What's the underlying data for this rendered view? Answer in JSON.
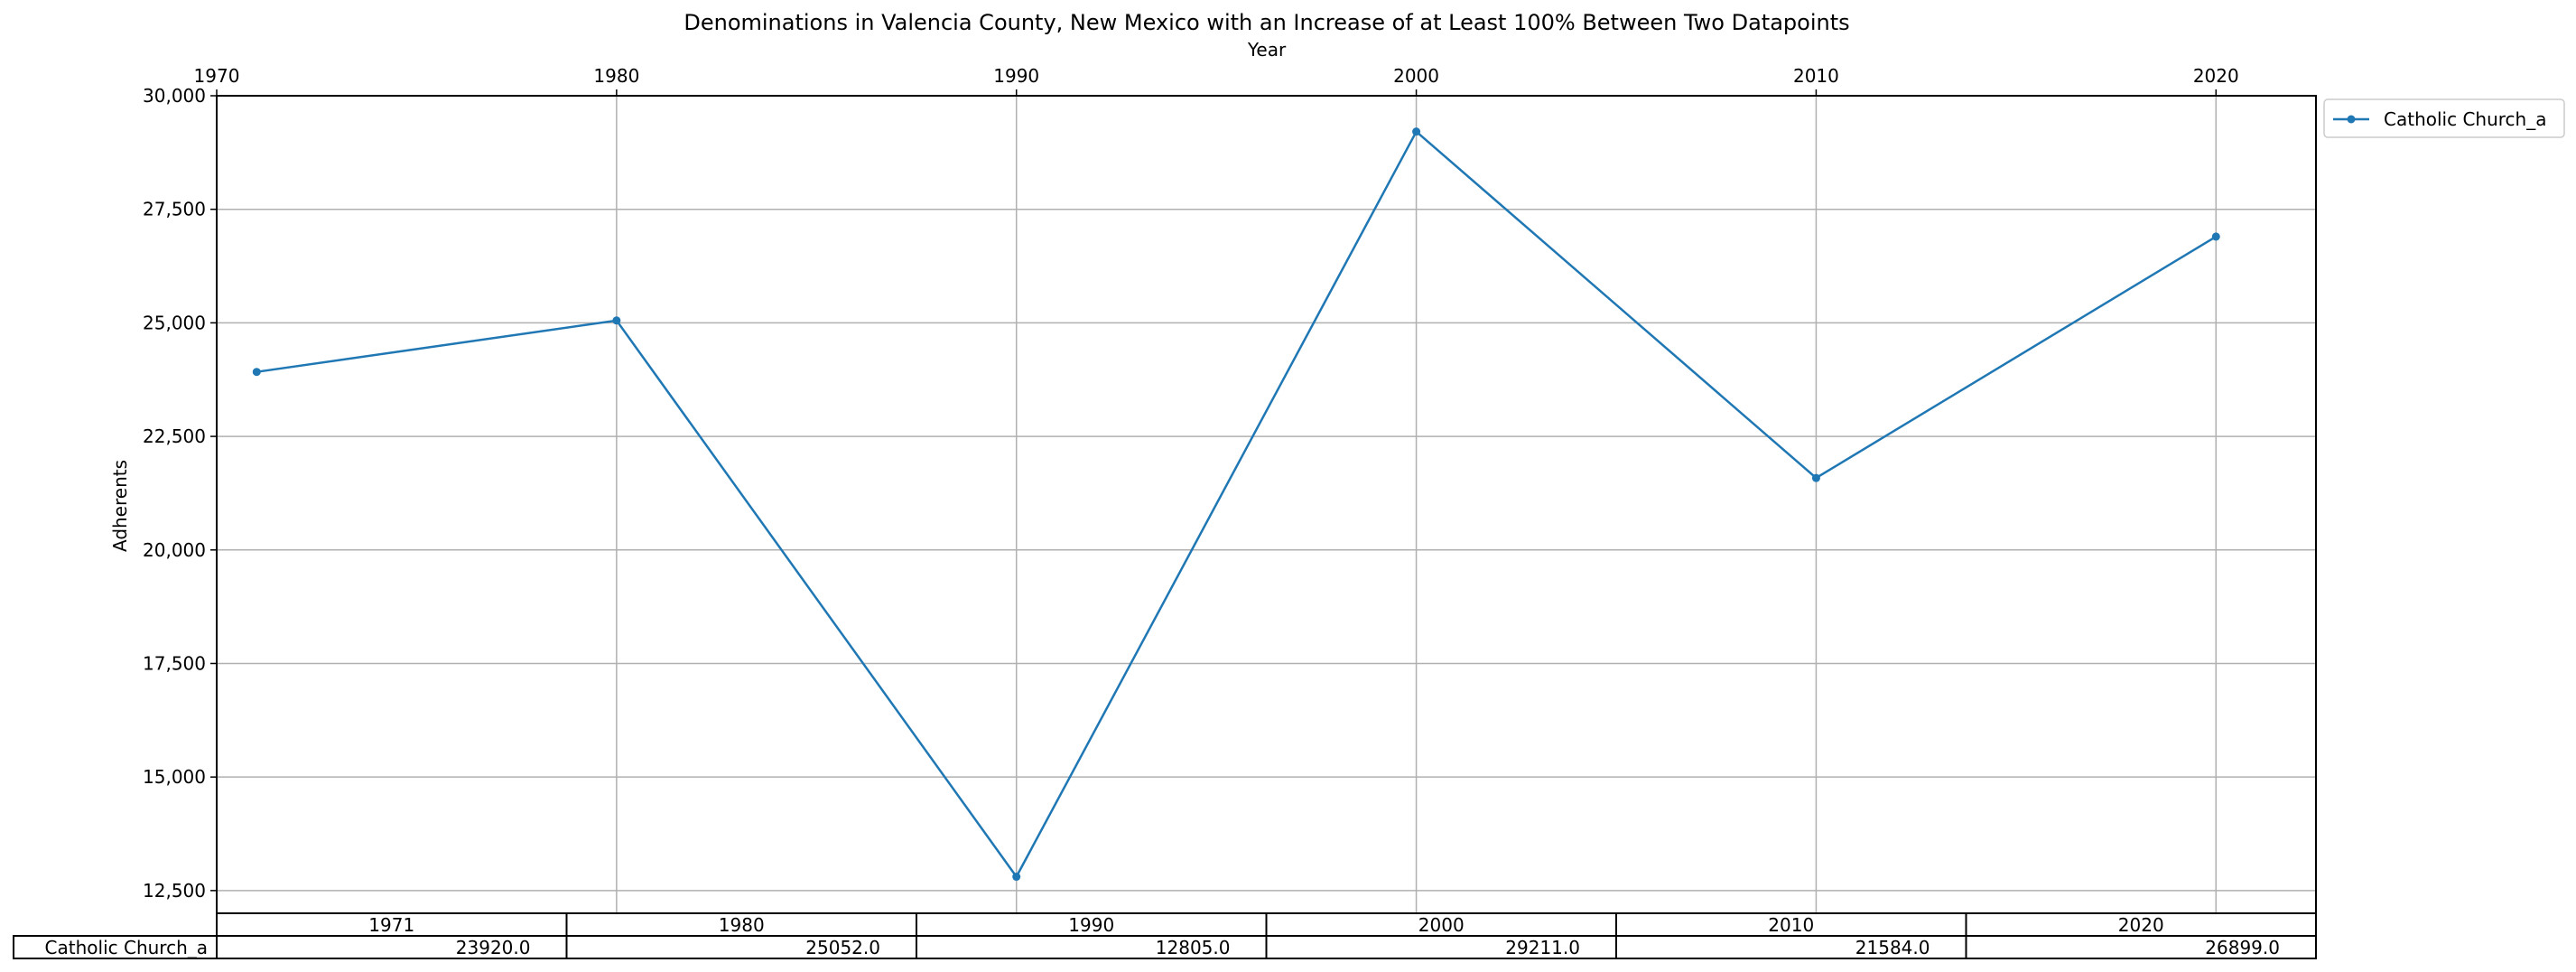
{
  "chart_data": {
    "type": "line",
    "title": "Denominations in Valencia County, New Mexico with an Increase of at Least 100% Between Two Datapoints",
    "xlabel": "Year",
    "ylabel": "Adherents",
    "x": [
      1971,
      1980,
      1990,
      2000,
      2010,
      2020
    ],
    "x_ticks": [
      "1970",
      "1980",
      "1990",
      "2000",
      "2010",
      "2020"
    ],
    "y_ticks": [
      "12,500",
      "15,000",
      "17,500",
      "20,000",
      "22,500",
      "25,000",
      "27,500",
      "30,000"
    ],
    "xlim": [
      1970,
      2022.5
    ],
    "ylim": [
      12000,
      30000
    ],
    "grid": true,
    "legend": "outside-top-right",
    "x_axis_position": "top",
    "series": [
      {
        "name": "Catholic Church_a",
        "color": "#1f77b4",
        "values": [
          23920,
          25052,
          12805,
          29211,
          21584,
          26899
        ]
      }
    ],
    "table": {
      "col_labels": [
        "1971",
        "1980",
        "1990",
        "2000",
        "2010",
        "2020"
      ],
      "row_label": "Catholic Church_a",
      "cells": [
        "23920.0",
        "25052.0",
        "12805.0",
        "29211.0",
        "21584.0",
        "26899.0"
      ]
    }
  }
}
